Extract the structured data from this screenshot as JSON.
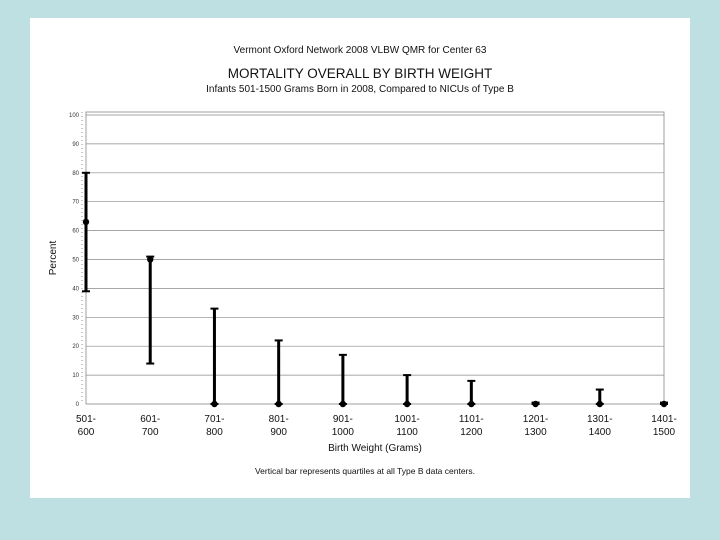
{
  "chart_data": {
    "type": "scatter",
    "supertitle": "Vermont Oxford Network 2008 VLBW QMR for Center 63",
    "title": "MORTALITY OVERALL BY BIRTH WEIGHT",
    "subtitle": "Infants 501-1500 Grams Born in 2008, Compared to NICUs of Type B",
    "xlabel": "Birth Weight (Grams)",
    "ylabel": "Percent",
    "footnote": "Vertical bar represents quartiles at all Type B data centers.",
    "ylim": [
      0,
      100
    ],
    "yticks": [
      "0",
      "10",
      "20",
      "30",
      "40",
      "50",
      "60",
      "70",
      "80",
      "90",
      "100"
    ],
    "grid": true,
    "categories": [
      {
        "top": "501-",
        "bottom": "600"
      },
      {
        "top": "601-",
        "bottom": "700"
      },
      {
        "top": "701-",
        "bottom": "800"
      },
      {
        "top": "801-",
        "bottom": "900"
      },
      {
        "top": "901-",
        "bottom": "1000"
      },
      {
        "top": "1001-",
        "bottom": "1100"
      },
      {
        "top": "1101-",
        "bottom": "1200"
      },
      {
        "top": "1201-",
        "bottom": "1300"
      },
      {
        "top": "1301-",
        "bottom": "1400"
      },
      {
        "top": "1401-",
        "bottom": "1500"
      }
    ],
    "center_values": [
      63,
      50,
      0,
      0,
      0,
      0,
      0,
      0,
      0,
      0
    ],
    "quartile_low": [
      39,
      14,
      0,
      0,
      0,
      0,
      0,
      0,
      0,
      0
    ],
    "quartile_high": [
      80,
      51,
      33,
      22,
      17,
      10,
      8,
      0.5,
      5,
      0.5
    ]
  }
}
